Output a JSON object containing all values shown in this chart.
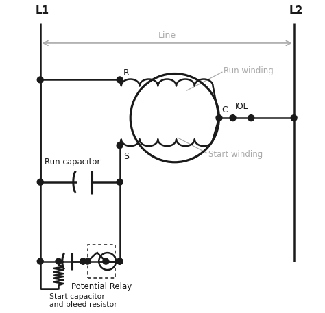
{
  "bg_color": "#ffffff",
  "line_color": "#1a1a1a",
  "gray_color": "#aaaaaa",
  "dot_color": "#1a1a1a",
  "label_L1": "L1",
  "label_L2": "L2",
  "label_Line": "Line",
  "label_R": "R",
  "label_S": "S",
  "label_C": "C",
  "label_IOL": "IOL",
  "label_Run_winding": "Run winding",
  "label_Start_winding": "Start winding",
  "label_Run_cap": "Run capacitor",
  "label_Potential_relay": "Potential Relay",
  "label_Start_cap": "Start capacitor\nand bleed resistor",
  "figsize": [
    4.74,
    4.57
  ],
  "dpi": 100
}
